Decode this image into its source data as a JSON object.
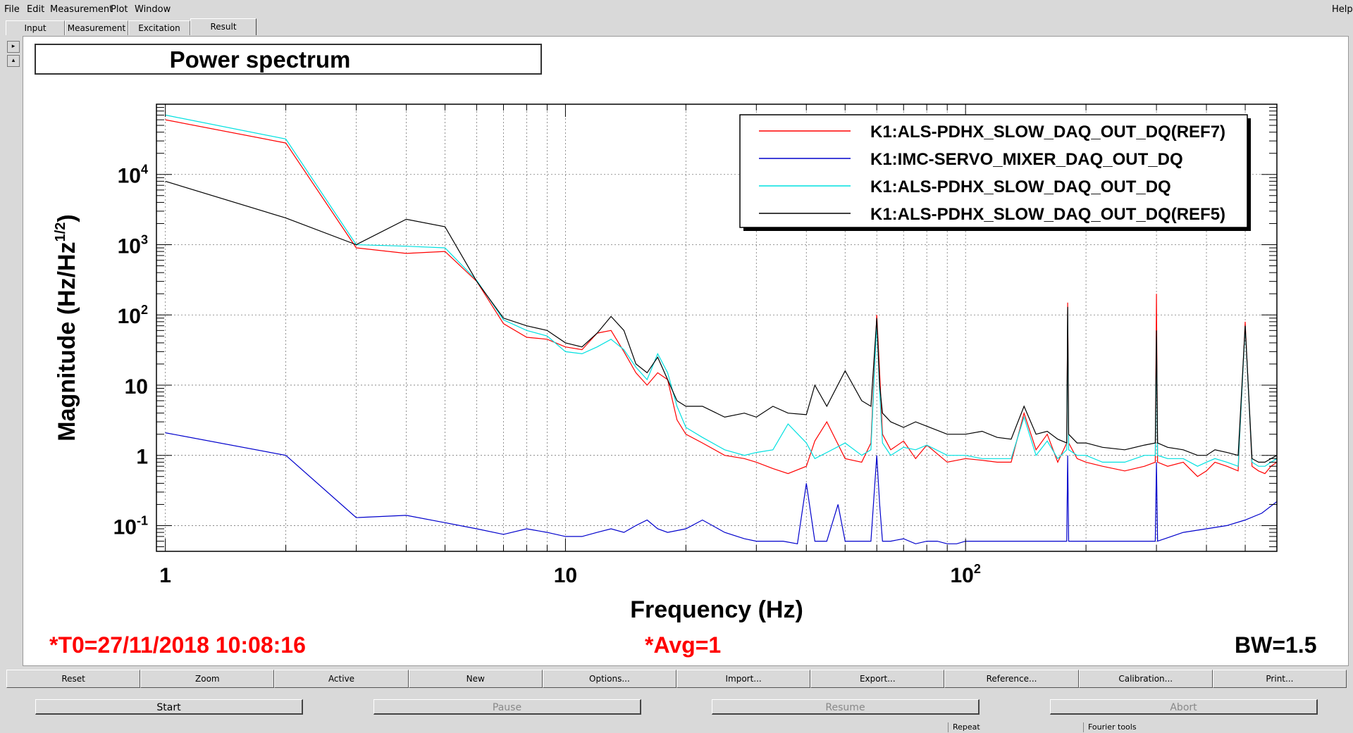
{
  "menu": {
    "file": "File",
    "edit": "Edit",
    "measurement": "Measurement",
    "plot": "Plot",
    "window": "Window",
    "help": "Help"
  },
  "tabs": [
    "Input",
    "Measurement",
    "Excitation",
    "Result"
  ],
  "active_tab": "Result",
  "title": "Power spectrum",
  "status": {
    "t0": "*T0=27/11/2018 10:08:16",
    "avg": "*Avg=1",
    "bw": "BW=1.5"
  },
  "buttons": [
    "Reset",
    "Zoom",
    "Active",
    "New",
    "Options...",
    "Import...",
    "Export...",
    "Reference...",
    "Calibration...",
    "Print..."
  ],
  "controls": {
    "start": "Start",
    "pause": "Pause",
    "resume": "Resume",
    "abort": "Abort"
  },
  "statusbar": {
    "repeat": "Repeat",
    "fourier": "Fourier tools"
  },
  "chart_data": {
    "type": "line",
    "title": "Power spectrum",
    "xlabel": "Frequency (Hz)",
    "ylabel": "Magnitude (Hz/Hz",
    "ylabel_sup": "1/2",
    "ylabel_end": ")",
    "xscale": "log",
    "yscale": "log",
    "xlim": [
      0.95,
      600
    ],
    "ylim": [
      0.043,
      100000
    ],
    "xticks": [
      {
        "label": "1"
      },
      {
        "label": "10"
      },
      {
        "label": "10",
        "sup": "2"
      }
    ],
    "yticks": [
      {
        "label": "10",
        "sup": "-1"
      },
      {
        "label": "1"
      },
      {
        "label": "10"
      },
      {
        "label": "10",
        "sup": "2"
      },
      {
        "label": "10",
        "sup": "3"
      },
      {
        "label": "10",
        "sup": "4"
      }
    ],
    "grid": true,
    "legend_position": "top-right",
    "series": [
      {
        "name": "K1:ALS-PDHX_SLOW_DAQ_OUT_DQ(REF7)",
        "color": "#ff0000",
        "x": [
          1,
          2,
          3,
          4,
          5,
          6,
          7,
          8,
          9,
          10,
          11,
          12,
          13,
          14,
          15,
          16,
          17,
          18,
          19,
          20,
          22,
          25,
          28,
          30,
          33,
          36,
          40,
          42,
          45,
          50,
          55,
          58,
          60,
          61,
          62,
          65,
          70,
          75,
          80,
          90,
          100,
          110,
          120,
          130,
          140,
          150,
          160,
          170,
          179,
          180,
          181,
          190,
          200,
          220,
          250,
          280,
          298,
          300,
          302,
          320,
          350,
          380,
          400,
          420,
          450,
          480,
          500,
          520,
          540,
          560,
          580,
          600
        ],
        "y": [
          60000,
          28000,
          900,
          750,
          800,
          300,
          75,
          48,
          45,
          35,
          32,
          55,
          60,
          30,
          15,
          10,
          15,
          12,
          3.2,
          2,
          1.5,
          1,
          0.9,
          0.8,
          0.65,
          0.55,
          0.7,
          1.6,
          3,
          0.9,
          0.8,
          1.5,
          100,
          15,
          2,
          1.2,
          1.6,
          0.9,
          1.4,
          0.8,
          0.9,
          0.85,
          0.8,
          0.8,
          4,
          1.2,
          2,
          0.8,
          1.5,
          150,
          1.5,
          0.9,
          0.8,
          0.7,
          0.6,
          0.7,
          0.8,
          200,
          0.8,
          0.7,
          0.8,
          0.5,
          0.6,
          0.8,
          0.7,
          0.6,
          80,
          0.7,
          0.6,
          0.55,
          0.7,
          0.8
        ]
      },
      {
        "name": "K1:IMC-SERVO_MIXER_DAQ_OUT_DQ",
        "color": "#0000cc",
        "x": [
          1,
          2,
          3,
          4,
          5,
          6,
          7,
          8,
          9,
          10,
          11,
          12,
          13,
          14,
          15,
          16,
          17,
          18,
          20,
          22,
          25,
          28,
          30,
          33,
          35,
          38,
          40,
          42,
          45,
          48,
          50,
          52,
          55,
          58,
          60,
          61,
          62,
          65,
          70,
          75,
          80,
          85,
          90,
          95,
          100,
          110,
          120,
          130,
          150,
          170,
          179,
          180,
          181,
          200,
          250,
          298,
          300,
          302,
          350,
          400,
          450,
          500,
          550,
          600
        ],
        "y": [
          2.1,
          1,
          0.13,
          0.14,
          0.11,
          0.09,
          0.075,
          0.09,
          0.08,
          0.07,
          0.07,
          0.08,
          0.09,
          0.08,
          0.1,
          0.12,
          0.09,
          0.08,
          0.09,
          0.12,
          0.08,
          0.065,
          0.06,
          0.06,
          0.06,
          0.055,
          0.4,
          0.06,
          0.06,
          0.2,
          0.06,
          0.06,
          0.06,
          0.06,
          1,
          0.2,
          0.06,
          0.06,
          0.065,
          0.055,
          0.06,
          0.06,
          0.055,
          0.055,
          0.06,
          0.06,
          0.06,
          0.06,
          0.06,
          0.06,
          0.06,
          1,
          0.06,
          0.06,
          0.06,
          0.06,
          0.8,
          0.06,
          0.08,
          0.09,
          0.1,
          0.12,
          0.15,
          0.22
        ]
      },
      {
        "name": "K1:ALS-PDHX_SLOW_DAQ_OUT_DQ",
        "color": "#00e0e0",
        "x": [
          1,
          2,
          3,
          4,
          5,
          6,
          7,
          8,
          9,
          10,
          11,
          12,
          13,
          14,
          15,
          16,
          17,
          18,
          19,
          20,
          22,
          25,
          28,
          30,
          33,
          36,
          40,
          42,
          45,
          50,
          55,
          58,
          60,
          61,
          62,
          65,
          70,
          75,
          80,
          90,
          100,
          110,
          120,
          130,
          140,
          150,
          160,
          170,
          179,
          180,
          181,
          190,
          200,
          220,
          250,
          280,
          298,
          300,
          302,
          320,
          350,
          380,
          400,
          420,
          450,
          480,
          500,
          520,
          540,
          560,
          580,
          600
        ],
        "y": [
          70000,
          32000,
          1000,
          950,
          900,
          310,
          85,
          60,
          50,
          30,
          28,
          35,
          45,
          32,
          18,
          12,
          28,
          15,
          5,
          2.5,
          1.8,
          1.2,
          1,
          1.1,
          1.2,
          2.8,
          1.5,
          0.9,
          1.1,
          1.5,
          1,
          1.2,
          80,
          8,
          1.5,
          1,
          1.3,
          1.2,
          1.4,
          1,
          1,
          0.9,
          0.9,
          0.9,
          3.5,
          1,
          1.6,
          0.9,
          1.2,
          120,
          1.2,
          1,
          1,
          0.8,
          0.8,
          1,
          1,
          50,
          1,
          0.9,
          0.9,
          0.7,
          0.8,
          0.9,
          0.8,
          0.7,
          70,
          0.8,
          0.7,
          0.7,
          0.8,
          0.9
        ]
      },
      {
        "name": "K1:ALS-PDHX_SLOW_DAQ_OUT_DQ(REF5)",
        "color": "#000000",
        "x": [
          1,
          2,
          3,
          4,
          5,
          6,
          7,
          8,
          9,
          10,
          11,
          12,
          13,
          14,
          15,
          16,
          17,
          18,
          19,
          20,
          22,
          25,
          28,
          30,
          33,
          36,
          40,
          42,
          45,
          50,
          55,
          58,
          60,
          61,
          62,
          65,
          70,
          75,
          80,
          90,
          100,
          110,
          120,
          130,
          140,
          150,
          160,
          170,
          179,
          180,
          181,
          190,
          200,
          220,
          250,
          280,
          298,
          300,
          302,
          320,
          350,
          380,
          400,
          420,
          450,
          480,
          500,
          520,
          540,
          560,
          580,
          600
        ],
        "y": [
          8000,
          2400,
          1000,
          2300,
          1800,
          300,
          90,
          70,
          60,
          40,
          35,
          55,
          95,
          60,
          20,
          15,
          25,
          12,
          6,
          5,
          5,
          3.5,
          4,
          3.5,
          5,
          4,
          3.8,
          10,
          5,
          16,
          6,
          5,
          90,
          10,
          4,
          3,
          2.5,
          3,
          2.6,
          2,
          2,
          2.2,
          1.8,
          1.7,
          5,
          2,
          2.2,
          1.7,
          1.5,
          130,
          2,
          1.5,
          1.5,
          1.3,
          1.2,
          1.4,
          1.5,
          60,
          1.5,
          1.3,
          1.2,
          1,
          1,
          1.2,
          1.1,
          1,
          70,
          0.9,
          0.8,
          0.8,
          0.9,
          1
        ]
      }
    ]
  }
}
